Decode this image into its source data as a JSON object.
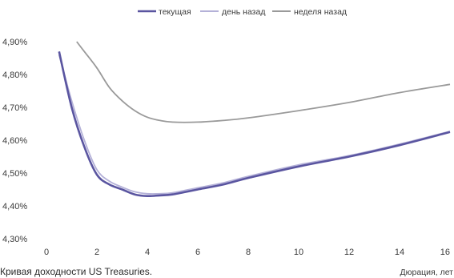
{
  "chart_data": {
    "type": "line",
    "caption": "Кривая доходности US Treasuries.",
    "xlabel": "Дюрация, лет",
    "ylabel": "",
    "xlim": [
      0,
      16
    ],
    "ylim": [
      4.3,
      4.9
    ],
    "x_ticks": [
      0,
      2,
      4,
      6,
      8,
      10,
      12,
      14,
      16
    ],
    "x_tick_labels": [
      "0",
      "2",
      "4",
      "6",
      "8",
      "10",
      "12",
      "14",
      "16"
    ],
    "y_ticks": [
      4.3,
      4.4,
      4.5,
      4.6,
      4.7,
      4.8,
      4.9
    ],
    "y_tick_labels": [
      "4,30%",
      "4,40%",
      "4,50%",
      "4,60%",
      "4,70%",
      "4,80%",
      "4,90%"
    ],
    "grid": false,
    "legend_position": "top-center",
    "series": [
      {
        "name": "текущая",
        "color": "#5a55a0",
        "points": [
          [
            0.5,
            4.87
          ],
          [
            1,
            4.7
          ],
          [
            1.5,
            4.58
          ],
          [
            2,
            4.495
          ],
          [
            2.5,
            4.465
          ],
          [
            3,
            4.45
          ],
          [
            3.5,
            4.435
          ],
          [
            4,
            4.43
          ],
          [
            4.5,
            4.432
          ],
          [
            5,
            4.435
          ],
          [
            6,
            4.45
          ],
          [
            7,
            4.465
          ],
          [
            8,
            4.485
          ],
          [
            10,
            4.52
          ],
          [
            12,
            4.55
          ],
          [
            14,
            4.585
          ],
          [
            16,
            4.625
          ]
        ]
      },
      {
        "name": "день назад",
        "color": "#b4b1d8",
        "points": [
          [
            0.5,
            4.86
          ],
          [
            1,
            4.72
          ],
          [
            1.5,
            4.6
          ],
          [
            2,
            4.51
          ],
          [
            2.5,
            4.475
          ],
          [
            3,
            4.457
          ],
          [
            3.5,
            4.443
          ],
          [
            4,
            4.437
          ],
          [
            4.5,
            4.437
          ],
          [
            5,
            4.44
          ],
          [
            6,
            4.455
          ],
          [
            7,
            4.47
          ],
          [
            8,
            4.49
          ],
          [
            10,
            4.525
          ],
          [
            12,
            4.553
          ],
          [
            14,
            4.588
          ],
          [
            16,
            4.627
          ]
        ]
      },
      {
        "name": "неделя назад",
        "color": "#9a9a9a",
        "points": [
          [
            1.2,
            4.9
          ],
          [
            1.5,
            4.87
          ],
          [
            2,
            4.82
          ],
          [
            2.5,
            4.76
          ],
          [
            3,
            4.72
          ],
          [
            3.5,
            4.69
          ],
          [
            4,
            4.67
          ],
          [
            4.5,
            4.66
          ],
          [
            5,
            4.655
          ],
          [
            6,
            4.655
          ],
          [
            7,
            4.66
          ],
          [
            8,
            4.668
          ],
          [
            10,
            4.69
          ],
          [
            12,
            4.715
          ],
          [
            14,
            4.745
          ],
          [
            16,
            4.77
          ]
        ]
      }
    ]
  }
}
